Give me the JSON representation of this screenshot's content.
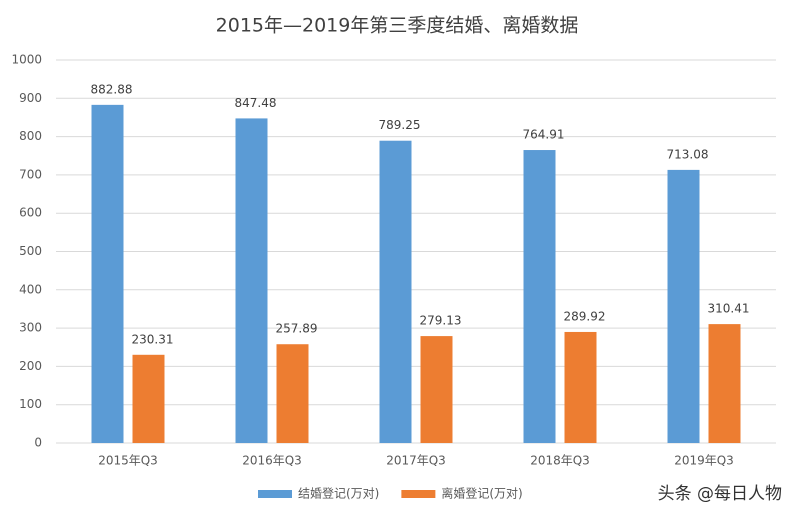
{
  "chart_data": {
    "type": "bar",
    "title": "2015年—2019年第三季度结婚、离婚数据",
    "categories": [
      "2015年Q3",
      "2016年Q3",
      "2017年Q3",
      "2018年Q3",
      "2019年Q3"
    ],
    "series": [
      {
        "name": "结婚登记(万对)",
        "color": "#5b9bd5",
        "values": [
          882.88,
          847.48,
          789.25,
          764.91,
          713.08
        ]
      },
      {
        "name": "离婚登记(万对)",
        "color": "#ed7d31",
        "values": [
          230.31,
          257.89,
          279.13,
          289.92,
          310.41
        ]
      }
    ],
    "ylim": [
      0,
      1000
    ],
    "yticks": [
      0,
      100,
      200,
      300,
      400,
      500,
      600,
      700,
      800,
      900,
      1000
    ],
    "grid": true,
    "legend": "bottom",
    "watermark": "头条 @每日人物"
  }
}
